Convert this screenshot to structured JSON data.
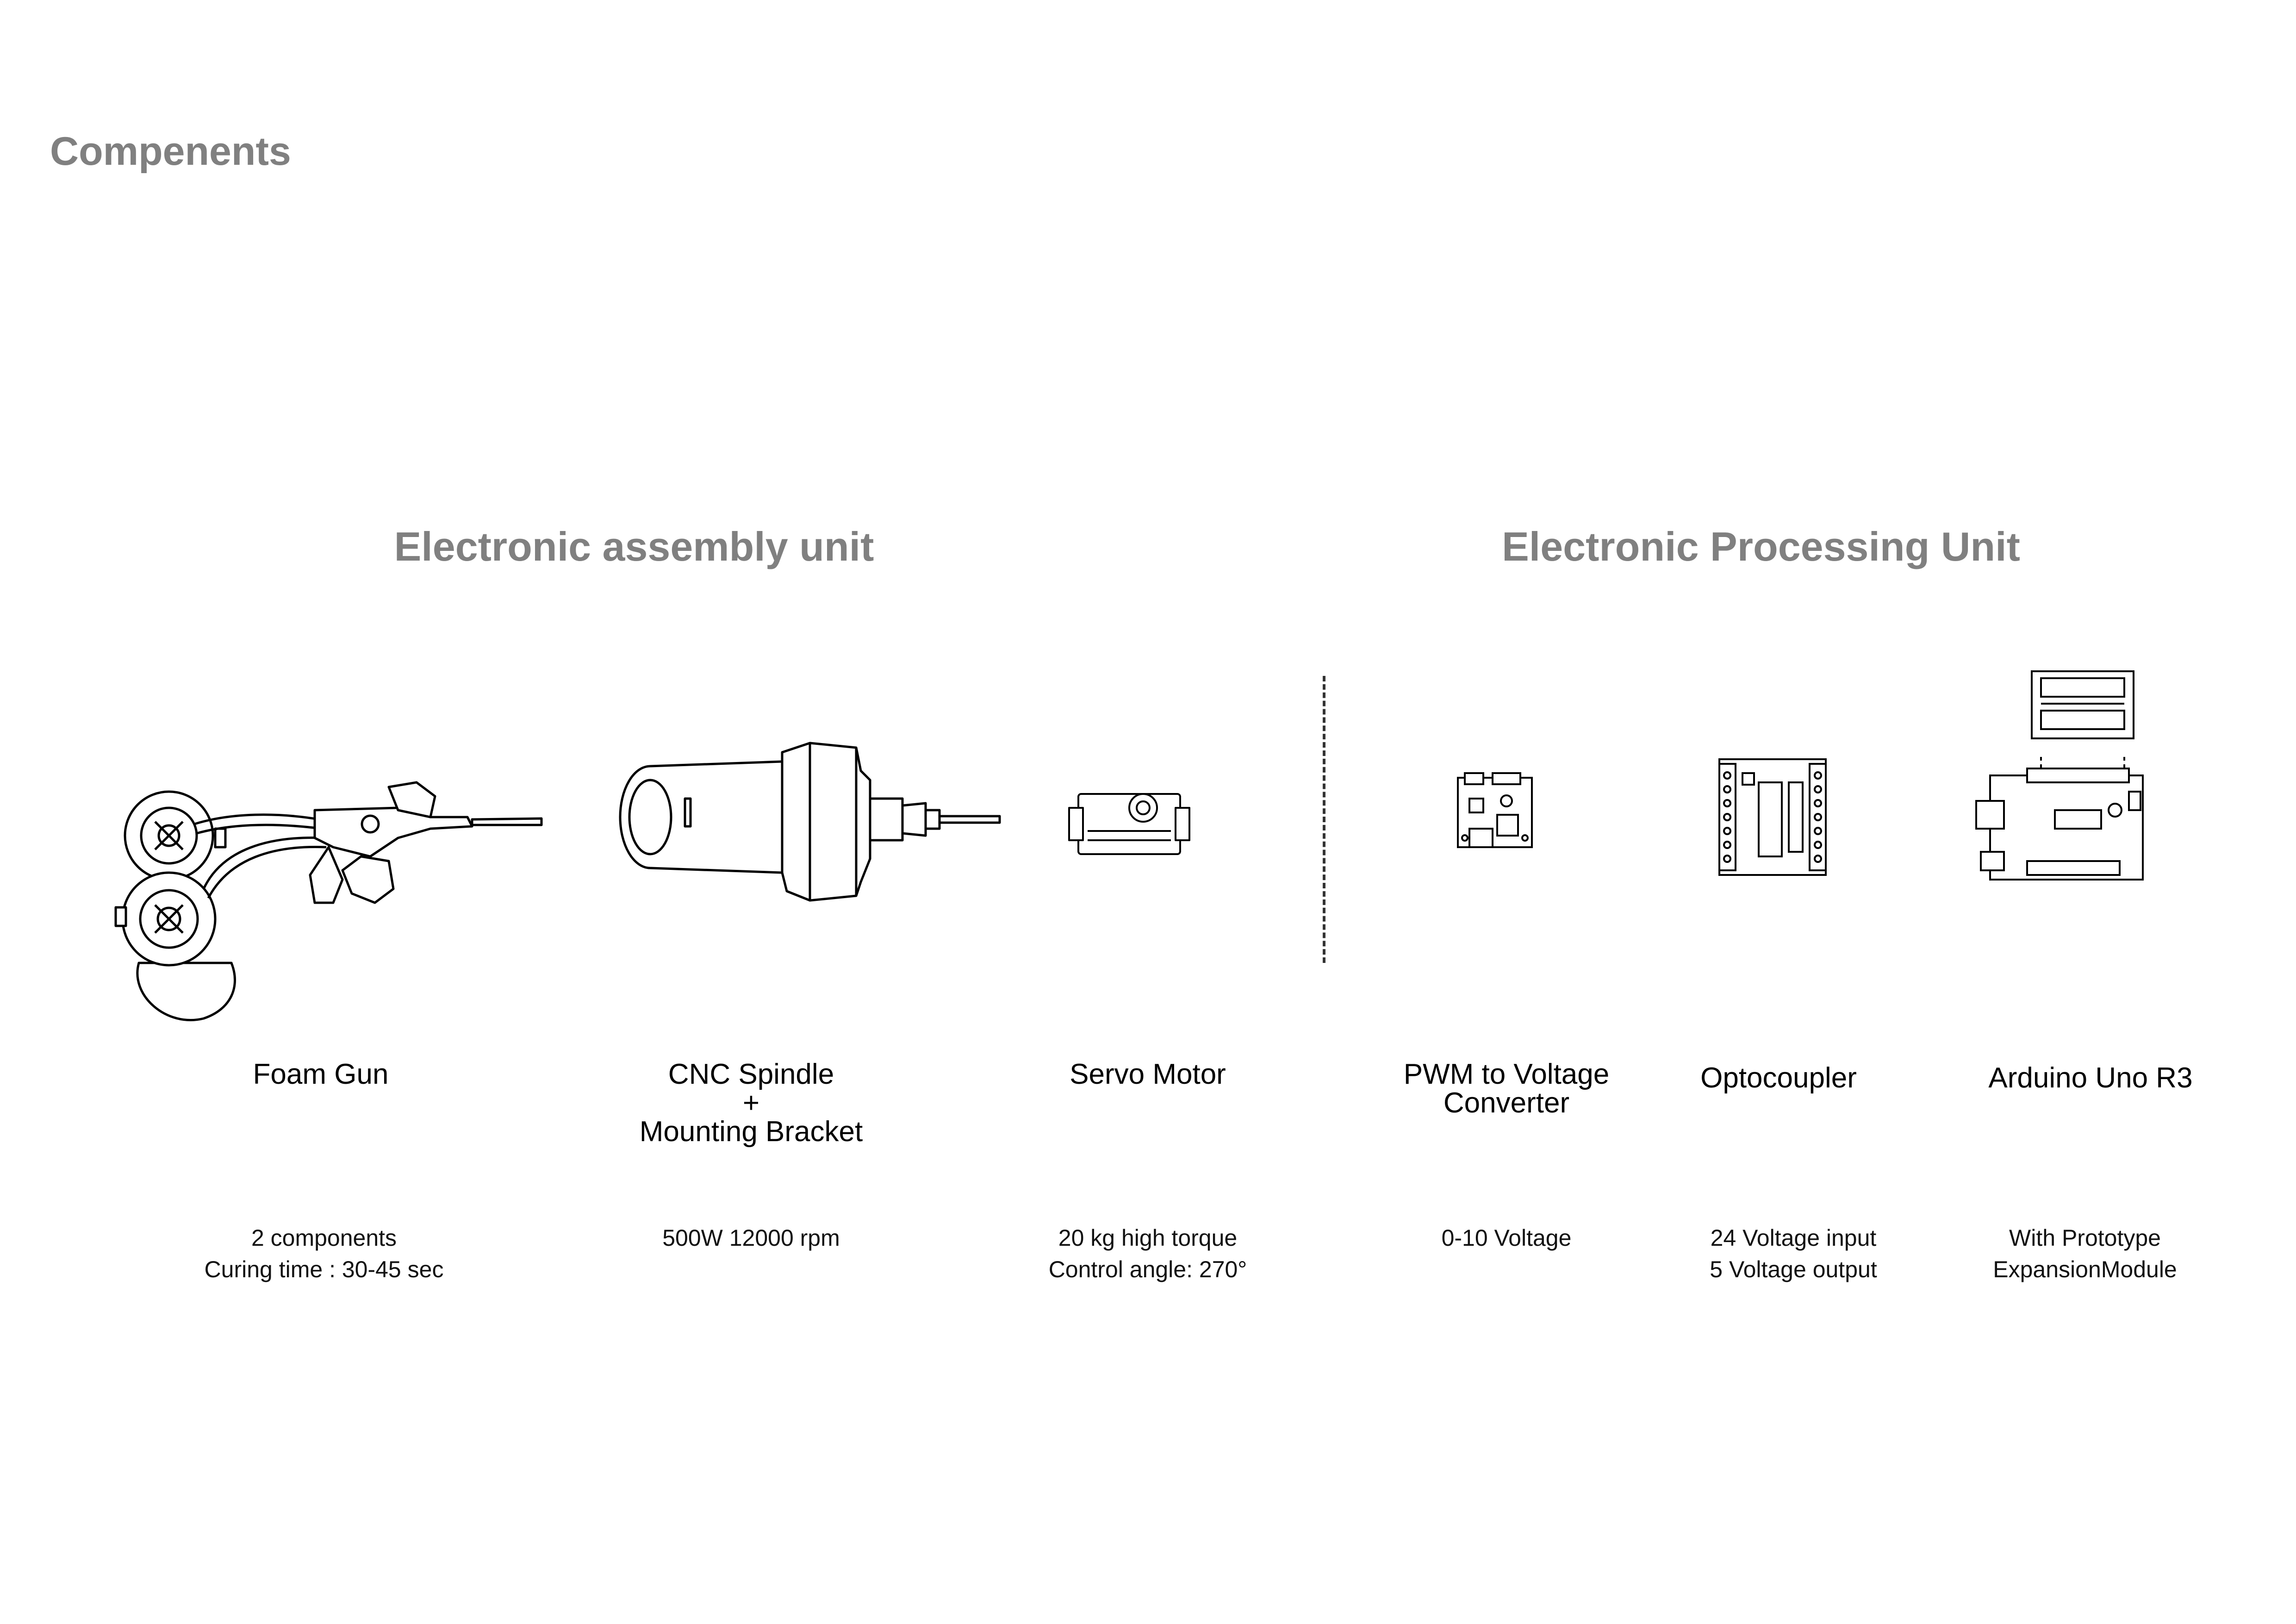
{
  "page_title": "Compenents",
  "sections": [
    {
      "title": "Electronic assembly unit"
    },
    {
      "title": "Electronic Processing Unit"
    }
  ],
  "components": [
    {
      "name": "Foam Gun",
      "spec": "2 components\nCuring time : 30-45 sec",
      "icon": "foam-gun-icon"
    },
    {
      "name": "CNC Spindle\n+\nMounting Bracket",
      "spec": "500W 12000 rpm",
      "icon": "cnc-spindle-icon"
    },
    {
      "name": "Servo Motor",
      "spec": "20 kg high torque\nControl angle: 270°",
      "icon": "servo-motor-icon"
    },
    {
      "name": "PWM to Voltage\nConverter",
      "spec": "0-10 Voltage",
      "icon": "pwm-converter-board-icon"
    },
    {
      "name": "Optocoupler",
      "spec": "24 Voltage input\n5 Voltage output",
      "icon": "optocoupler-board-icon"
    },
    {
      "name": "Arduino Uno R3",
      "spec": "With Prototype\nExpansionModule",
      "icon": "arduino-board-icon"
    }
  ]
}
